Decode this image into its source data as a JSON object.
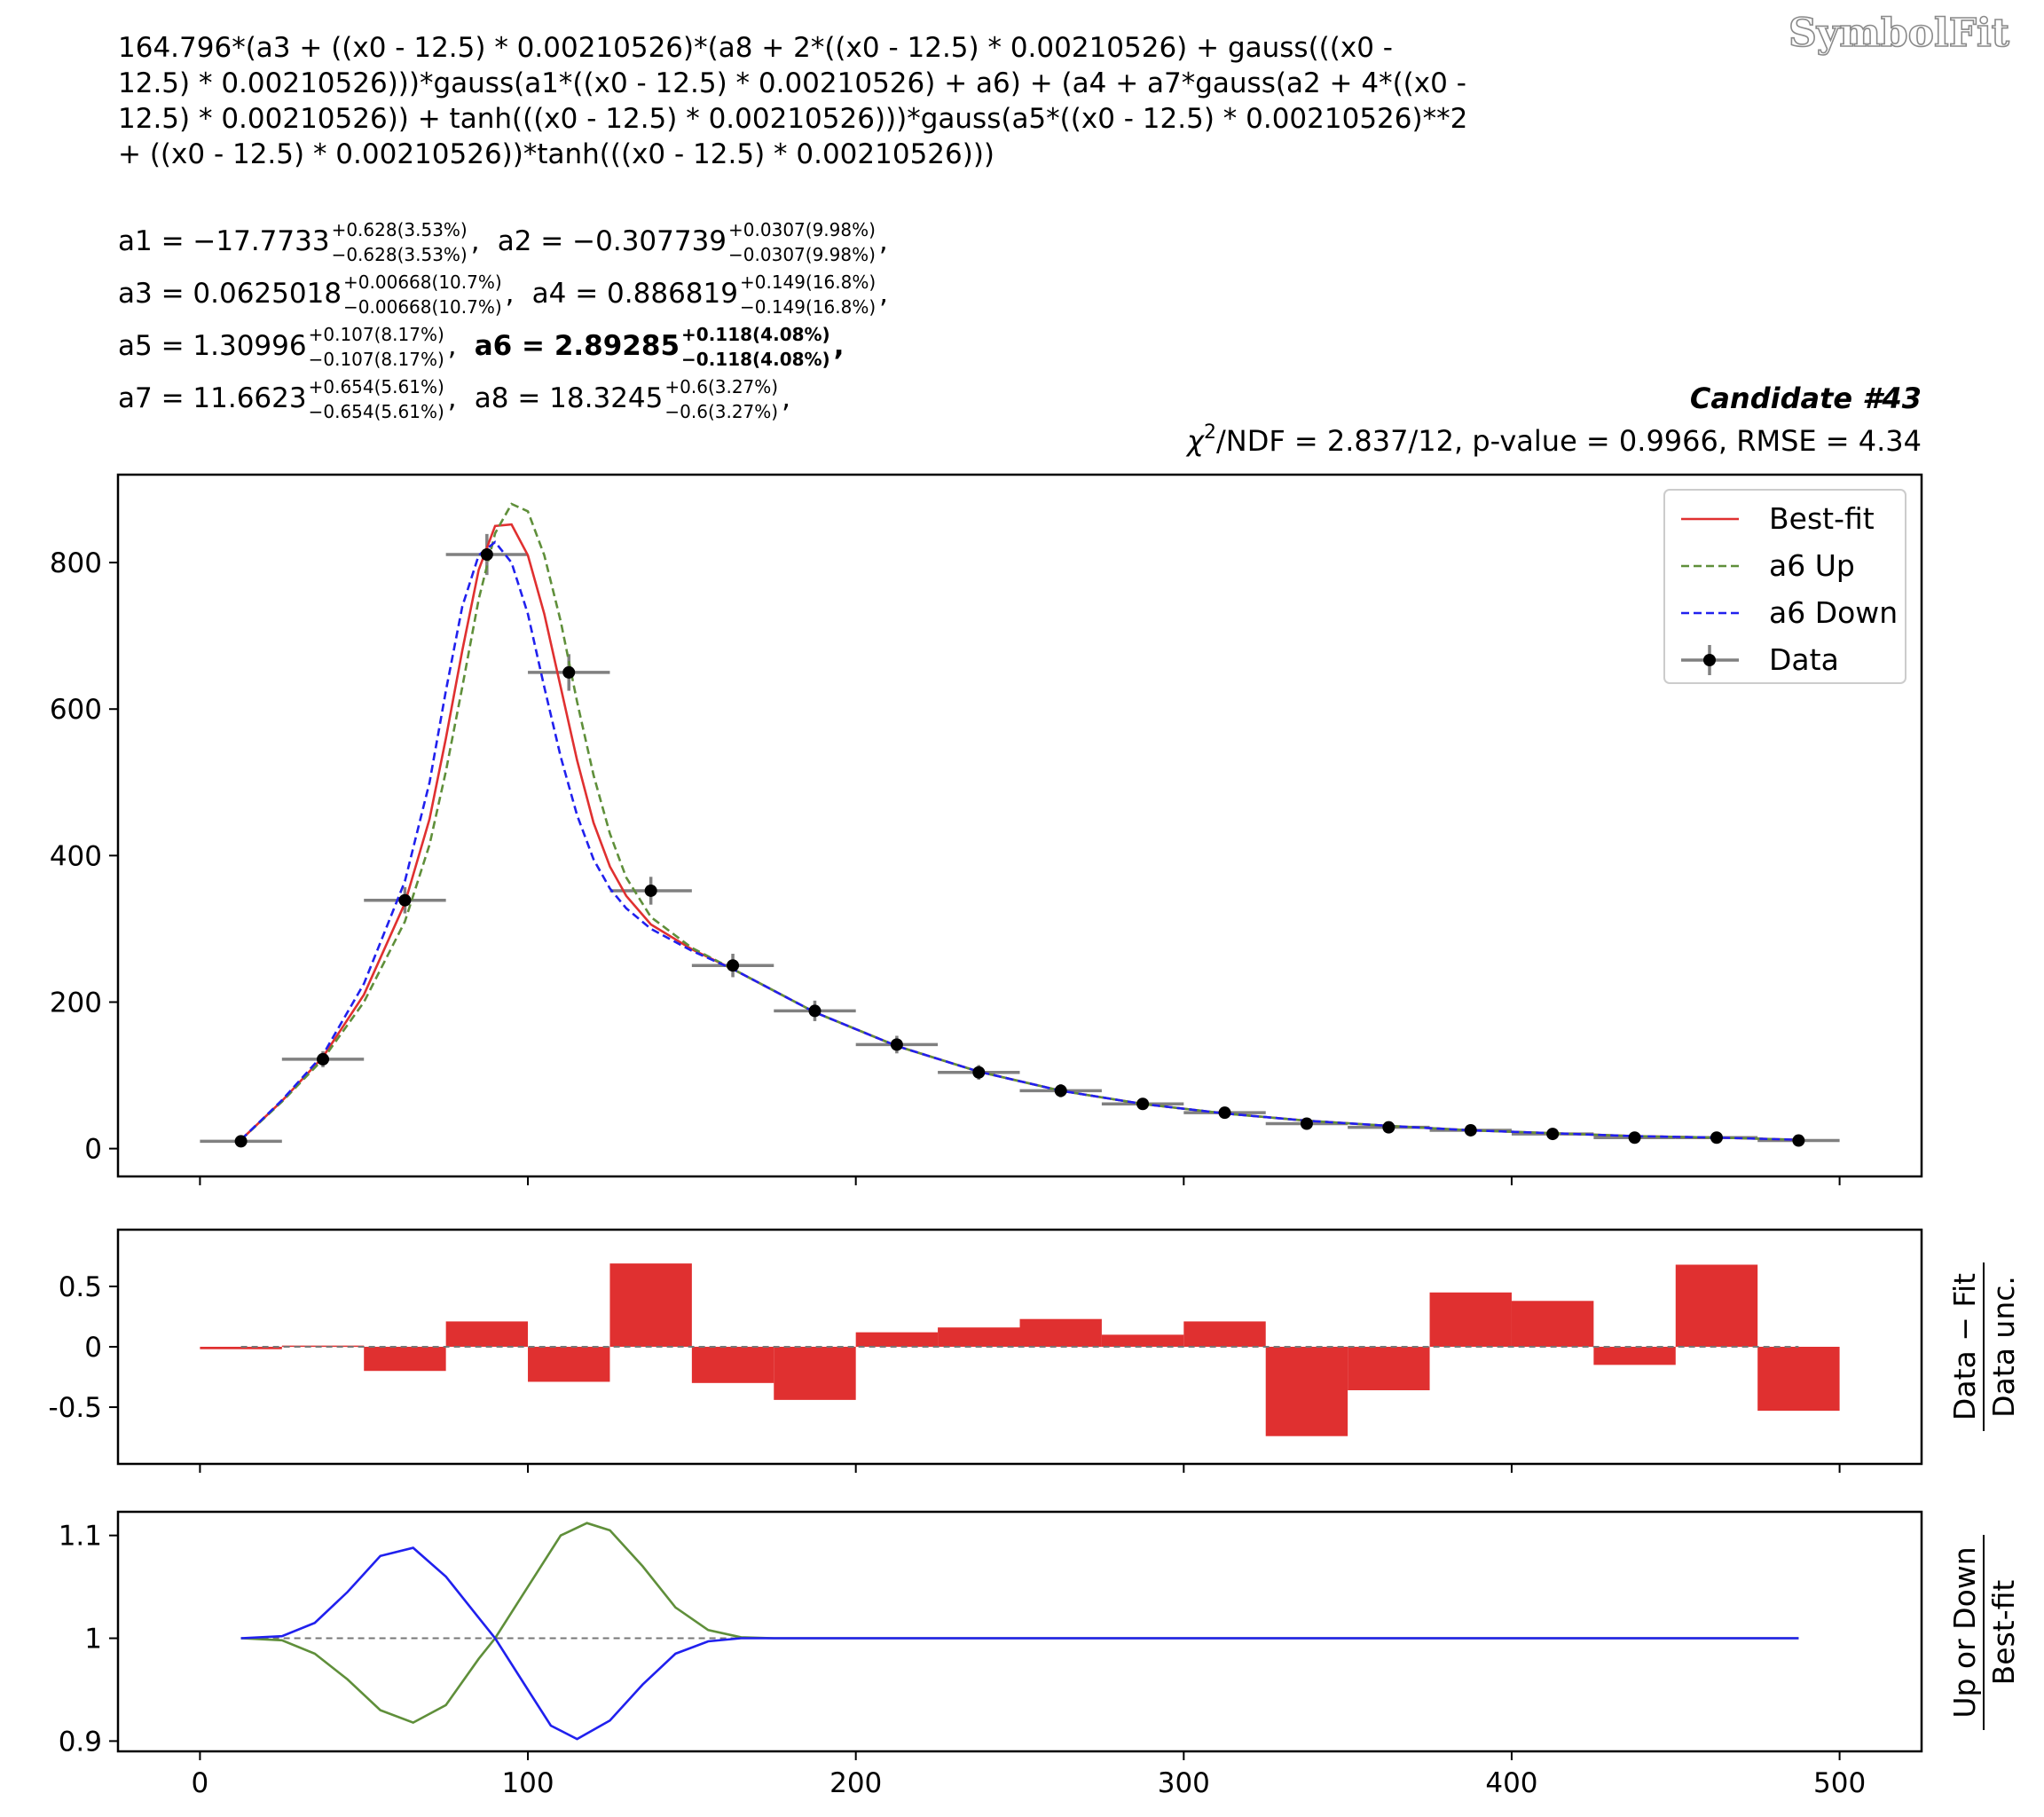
{
  "watermark": "SymbolFit",
  "formula_lines": [
    "164.796*(a3 + ((x0 - 12.5) * 0.00210526)*(a8 + 2*((x0 - 12.5) * 0.00210526) + gauss(((x0 -",
    "12.5) * 0.00210526)))*gauss(a1*((x0 - 12.5) * 0.00210526) + a6) + (a4 + a7*gauss(a2 + 4*((x0 -",
    "12.5) * 0.00210526)) + tanh(((x0 - 12.5) * 0.00210526)))*gauss(a5*((x0 - 12.5) * 0.00210526)**2",
    "+ ((x0 - 12.5) * 0.00210526))*tanh(((x0 - 12.5) * 0.00210526)))"
  ],
  "params": [
    [
      {
        "name": "a1",
        "value": "−17.7733",
        "up": "+0.628(3.53%)",
        "down": "−0.628(3.53%)",
        "bold": false
      },
      {
        "name": "a2",
        "value": "−0.307739",
        "up": "+0.0307(9.98%)",
        "down": "−0.0307(9.98%)",
        "bold": false
      }
    ],
    [
      {
        "name": "a3",
        "value": "0.0625018",
        "up": "+0.00668(10.7%)",
        "down": "−0.00668(10.7%)",
        "bold": false
      },
      {
        "name": "a4",
        "value": "0.886819",
        "up": "+0.149(16.8%)",
        "down": "−0.149(16.8%)",
        "bold": false
      }
    ],
    [
      {
        "name": "a5",
        "value": "1.30996",
        "up": "+0.107(8.17%)",
        "down": "−0.107(8.17%)",
        "bold": false
      },
      {
        "name": "a6",
        "value": "2.89285",
        "up": "+0.118(4.08%)",
        "down": "−0.118(4.08%)",
        "bold": true
      }
    ],
    [
      {
        "name": "a7",
        "value": "11.6623",
        "up": "+0.654(5.61%)",
        "down": "−0.654(5.61%)",
        "bold": false
      },
      {
        "name": "a8",
        "value": "18.3245",
        "up": "+0.6(3.27%)",
        "down": "−0.6(3.27%)",
        "bold": false
      }
    ]
  ],
  "candidate": "Candidate #43",
  "stats": {
    "chi_symbol": "χ",
    "chi_exp": "2",
    "text": "/NDF = 2.837/12, p-value = 0.9966, RMSE = 4.34"
  },
  "colors": {
    "bestfit": "#e03030",
    "up": "#5f8f3a",
    "down": "#2020ee",
    "data": "#000000",
    "xerr": "#808080",
    "residual": "#e03030"
  },
  "chart_data": [
    {
      "type": "scatter",
      "panel": "main",
      "xlim": [
        -25,
        525
      ],
      "ylim": [
        -38,
        920
      ],
      "xticks": [
        0,
        100,
        200,
        300,
        400,
        500
      ],
      "yticks": [
        0,
        200,
        400,
        600,
        800
      ],
      "ytick_labels": [
        "0",
        "200",
        "400",
        "600",
        "800"
      ],
      "legend_position": "top-right",
      "legend": [
        "Best-fit",
        "a6 Up",
        "a6 Down",
        "Data"
      ],
      "bin_width": 25,
      "data": {
        "name": "Data",
        "x": [
          12.5,
          37.5,
          62.5,
          87.5,
          112.5,
          137.5,
          162.5,
          187.5,
          212.5,
          237.5,
          262.5,
          287.5,
          312.5,
          337.5,
          362.5,
          387.5,
          412.5,
          437.5,
          462.5,
          487.5
        ],
        "y": [
          10,
          122,
          339,
          811,
          650,
          352,
          250,
          188,
          142,
          104,
          79,
          61,
          49,
          34,
          29,
          25,
          20,
          15,
          15,
          11
        ],
        "yerr": [
          3,
          11,
          18,
          28,
          25,
          19,
          16,
          14,
          12,
          10,
          9,
          8,
          7,
          6,
          5,
          5,
          4.5,
          4,
          4,
          3.3
        ]
      },
      "curves": [
        {
          "name": "Best-fit",
          "style": "solid",
          "x": [
            12.5,
            25,
            37.5,
            50,
            62.5,
            70,
            75,
            80,
            85,
            90,
            95,
            100,
            105,
            110,
            115,
            120,
            125,
            130,
            137.5,
            150,
            162.5,
            187.5,
            212.5,
            237.5,
            262.5,
            287.5,
            312.5,
            337.5,
            362.5,
            387.5,
            412.5,
            437.5,
            462.5,
            487.5
          ],
          "y": [
            12,
            65,
            125,
            210,
            335,
            450,
            560,
            680,
            790,
            850,
            852,
            810,
            730,
            630,
            530,
            445,
            385,
            345,
            306,
            272,
            245,
            186,
            140,
            105,
            79,
            61,
            48,
            38,
            31,
            25,
            21,
            17,
            15,
            12
          ]
        },
        {
          "name": "a6 Up",
          "style": "dashed",
          "x": [
            12.5,
            25,
            37.5,
            50,
            62.5,
            70,
            75,
            80,
            85,
            90,
            95,
            100,
            105,
            110,
            115,
            120,
            125,
            130,
            137.5,
            150,
            162.5,
            187.5,
            212.5,
            237.5,
            262.5,
            287.5,
            312.5,
            337.5,
            362.5,
            387.5,
            412.5,
            437.5,
            462.5,
            487.5
          ],
          "y": [
            12,
            64,
            122,
            200,
            310,
            415,
            515,
            630,
            750,
            840,
            880,
            870,
            810,
            720,
            610,
            510,
            430,
            370,
            316,
            274,
            245,
            186,
            140,
            105,
            79,
            61,
            48,
            38,
            31,
            25,
            21,
            17,
            15,
            12
          ]
        },
        {
          "name": "a6 Down",
          "style": "dashed",
          "x": [
            12.5,
            25,
            37.5,
            50,
            62.5,
            70,
            75,
            80,
            85,
            90,
            95,
            100,
            105,
            110,
            115,
            120,
            125,
            130,
            137.5,
            150,
            162.5,
            187.5,
            212.5,
            237.5,
            262.5,
            287.5,
            312.5,
            337.5,
            362.5,
            387.5,
            412.5,
            437.5,
            462.5,
            487.5
          ],
          "y": [
            12,
            66,
            128,
            225,
            365,
            500,
            625,
            740,
            810,
            828,
            800,
            730,
            630,
            535,
            455,
            395,
            355,
            328,
            300,
            270,
            245,
            186,
            140,
            105,
            79,
            61,
            48,
            38,
            31,
            25,
            21,
            17,
            15,
            12
          ]
        }
      ]
    },
    {
      "type": "bar",
      "panel": "residual",
      "ylabel_top": "Data − Fit",
      "ylabel_bottom": "Data unc.",
      "xlim": [
        -25,
        525
      ],
      "ylim": [
        -0.97,
        0.97
      ],
      "yticks": [
        0.5,
        0,
        -0.5
      ],
      "ytick_labels": [
        "0.5",
        "0",
        "-0.5"
      ],
      "bin_edges": [
        0,
        25,
        50,
        75,
        100,
        125,
        150,
        175,
        200,
        225,
        250,
        275,
        300,
        325,
        350,
        375,
        400,
        425,
        450,
        475,
        500
      ],
      "values": [
        -0.02,
        0.01,
        -0.2,
        0.21,
        -0.29,
        0.69,
        -0.3,
        -0.44,
        0.12,
        0.16,
        0.23,
        0.1,
        0.21,
        -0.74,
        -0.36,
        0.45,
        0.38,
        -0.15,
        0.68,
        -0.53
      ]
    },
    {
      "type": "line",
      "panel": "ratio",
      "ylabel_top": "Up or Down",
      "ylabel_bottom": "Best-fit",
      "xlim": [
        -25,
        525
      ],
      "ylim": [
        0.89,
        1.123
      ],
      "xticks": [
        0,
        100,
        200,
        300,
        400,
        500
      ],
      "yticks": [
        1.1,
        1,
        0.9
      ],
      "ytick_labels": [
        "1.1",
        "1",
        "0.9"
      ],
      "series": [
        {
          "name": "Up",
          "x": [
            12.5,
            25,
            35,
            45,
            55,
            65,
            75,
            85,
            90,
            100,
            110,
            118,
            125,
            135,
            145,
            155,
            165,
            175,
            487.5
          ],
          "y": [
            1.0,
            0.998,
            0.985,
            0.96,
            0.93,
            0.918,
            0.935,
            0.98,
            1.0,
            1.05,
            1.1,
            1.112,
            1.105,
            1.07,
            1.03,
            1.008,
            1.001,
            1.0,
            1.0
          ]
        },
        {
          "name": "Down",
          "x": [
            12.5,
            25,
            35,
            45,
            55,
            65,
            75,
            85,
            90,
            100,
            107,
            115,
            125,
            135,
            145,
            155,
            165,
            175,
            487.5
          ],
          "y": [
            1.0,
            1.002,
            1.015,
            1.045,
            1.08,
            1.088,
            1.06,
            1.02,
            1.0,
            0.95,
            0.915,
            0.902,
            0.92,
            0.955,
            0.985,
            0.997,
            1.0,
            1.0,
            1.0
          ]
        }
      ]
    }
  ]
}
